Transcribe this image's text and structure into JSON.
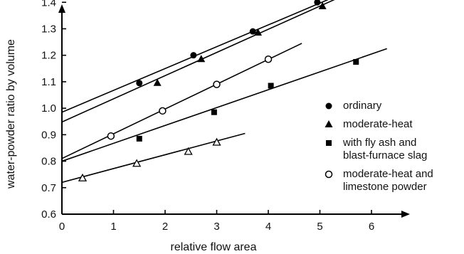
{
  "chart_data": {
    "type": "scatter",
    "title": "",
    "xlabel": "relative flow area",
    "ylabel": "water-powder ratio by volume",
    "xlim": [
      0,
      6.4
    ],
    "ylim": [
      0.6,
      1.45
    ],
    "xticks": [
      0,
      1,
      2,
      3,
      4,
      5,
      6
    ],
    "yticks": [
      0.6,
      0.7,
      0.8,
      0.9,
      1.0,
      1.1,
      1.2,
      1.3,
      1.4
    ],
    "xtick_labels": [
      "0",
      "1",
      "2",
      "3",
      "4",
      "5",
      "6"
    ],
    "ytick_labels": [
      "0.6",
      "0.7",
      "0.8",
      "0.9",
      "1.0",
      "1.1",
      "1.2",
      "1.3",
      "1.4"
    ],
    "grid": false,
    "legend_position": "right",
    "series": [
      {
        "name": "ordinary",
        "marker": "filled-circle",
        "points": [
          [
            1.5,
            1.095
          ],
          [
            2.55,
            1.2
          ],
          [
            3.7,
            1.29
          ],
          [
            4.95,
            1.4
          ]
        ],
        "fit_line": [
          [
            0,
            0.985
          ],
          [
            5.4,
            1.43
          ]
        ]
      },
      {
        "name": "moderate-heat",
        "marker": "filled-triangle",
        "points": [
          [
            1.85,
            1.095
          ],
          [
            2.7,
            1.185
          ],
          [
            3.8,
            1.285
          ],
          [
            5.05,
            1.385
          ]
        ],
        "fit_line": [
          [
            0,
            0.948
          ],
          [
            5.45,
            1.425
          ]
        ]
      },
      {
        "name": "with fly ash and blast-furnace slag",
        "marker": "filled-square",
        "points": [
          [
            1.5,
            0.885
          ],
          [
            2.95,
            0.985
          ],
          [
            4.05,
            1.085
          ],
          [
            5.7,
            1.175
          ]
        ],
        "fit_line": [
          [
            0,
            0.8
          ],
          [
            6.3,
            1.225
          ]
        ]
      },
      {
        "name": "moderate-heat and limestone powder",
        "marker": "open-circle",
        "points": [
          [
            0.95,
            0.895
          ],
          [
            1.95,
            0.99
          ],
          [
            3.0,
            1.09
          ],
          [
            4.0,
            1.185
          ]
        ],
        "fit_line": [
          [
            0,
            0.81
          ],
          [
            4.65,
            1.245
          ]
        ]
      },
      {
        "name": "",
        "marker": "open-triangle",
        "points": [
          [
            0.4,
            0.735
          ],
          [
            1.45,
            0.79
          ],
          [
            2.45,
            0.835
          ],
          [
            3.0,
            0.87
          ]
        ],
        "fit_line": [
          [
            0,
            0.72
          ],
          [
            3.55,
            0.905
          ]
        ]
      }
    ],
    "legend": [
      {
        "marker": "filled-circle",
        "lines": [
          "ordinary"
        ]
      },
      {
        "marker": "filled-triangle",
        "lines": [
          "moderate-heat"
        ]
      },
      {
        "marker": "filled-square",
        "lines": [
          "with fly ash and",
          "blast-furnace slag"
        ]
      },
      {
        "marker": "open-circle",
        "lines": [
          "moderate-heat and",
          "limestone powder"
        ]
      }
    ]
  }
}
